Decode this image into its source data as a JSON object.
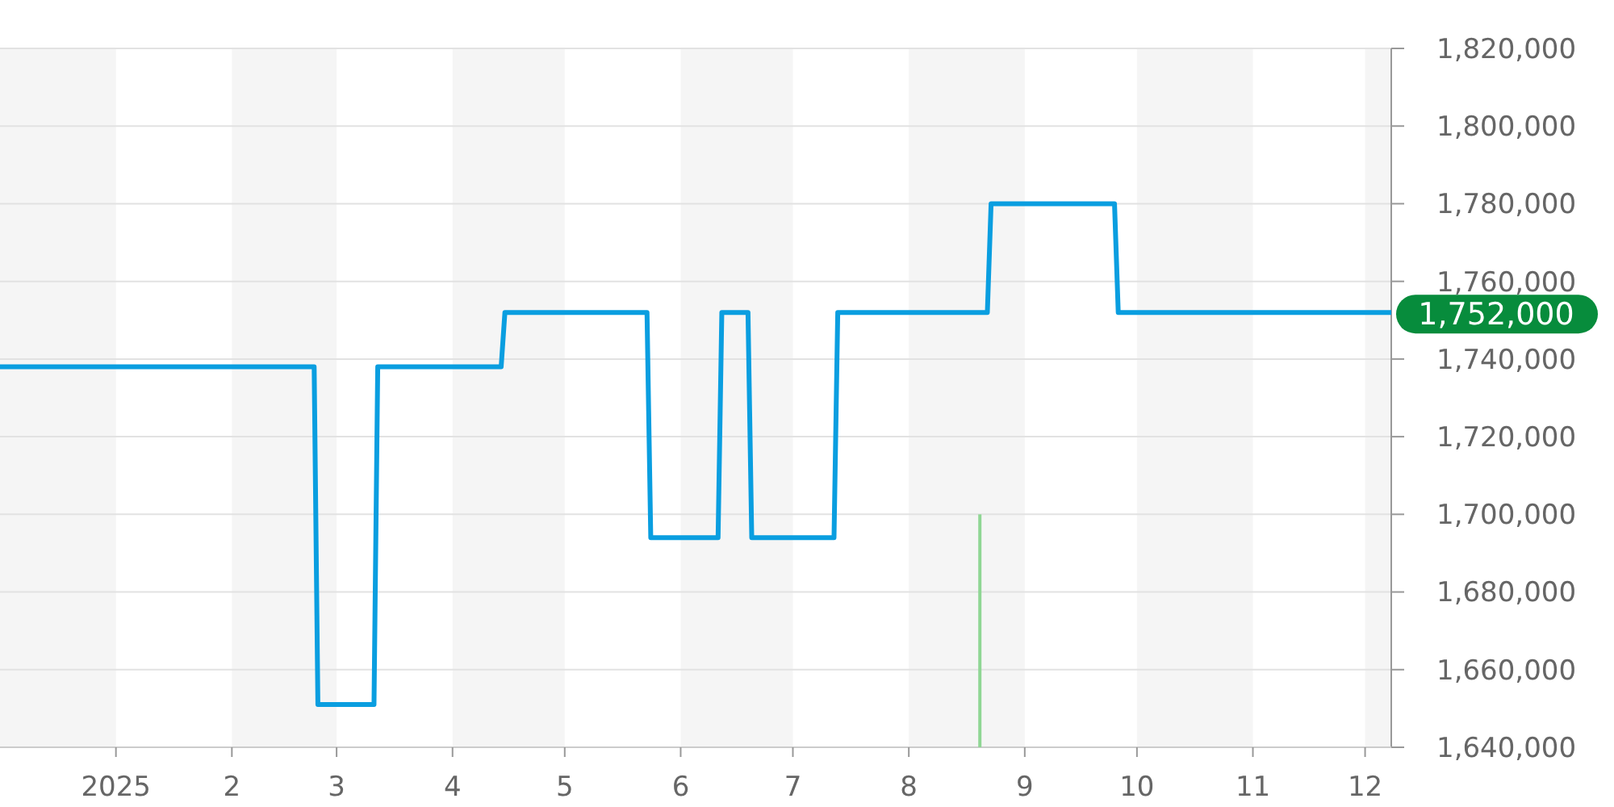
{
  "chart_data": {
    "type": "line",
    "x": [
      "2024-12-01",
      "2025-02-23",
      "2025-02-24",
      "2025-03-11",
      "2025-03-12",
      "2025-04-14",
      "2025-04-15",
      "2025-05-23",
      "2025-05-24",
      "2025-06-11",
      "2025-06-12",
      "2025-06-19",
      "2025-06-20",
      "2025-07-12",
      "2025-07-13",
      "2025-08-22",
      "2025-08-23",
      "2025-09-25",
      "2025-09-26",
      "2025-12-08"
    ],
    "series": [
      {
        "color": "#0a9ee0",
        "values": [
          1738000,
          1738000,
          1651000,
          1651000,
          1738000,
          1738000,
          1752000,
          1752000,
          1694000,
          1694000,
          1752000,
          1752000,
          1694000,
          1694000,
          1752000,
          1752000,
          1780000,
          1780000,
          1752000,
          1752000
        ]
      },
      {
        "type": "bar",
        "color": "#8fd694",
        "x": [
          "2025-08-20"
        ],
        "base": [
          1640000
        ],
        "values": [
          60000
        ]
      }
    ],
    "xlim": [
      "2024-12-01",
      "2025-12-08"
    ],
    "xticks": [
      {
        "value": "2025-01-01",
        "label": "2025"
      },
      {
        "value": "2025-02-01",
        "label": "2"
      },
      {
        "value": "2025-03-01",
        "label": "3"
      },
      {
        "value": "2025-04-01",
        "label": "4"
      },
      {
        "value": "2025-05-01",
        "label": "5"
      },
      {
        "value": "2025-06-01",
        "label": "6"
      },
      {
        "value": "2025-07-01",
        "label": "7"
      },
      {
        "value": "2025-08-01",
        "label": "8"
      },
      {
        "value": "2025-09-01",
        "label": "9"
      },
      {
        "value": "2025-10-01",
        "label": "10"
      },
      {
        "value": "2025-11-01",
        "label": "11"
      },
      {
        "value": "2025-12-01",
        "label": "12"
      }
    ],
    "ylim": [
      1640000,
      1820000
    ],
    "yticks": [
      {
        "value": 1640000,
        "label": "1,640,000"
      },
      {
        "value": 1660000,
        "label": "1,660,000"
      },
      {
        "value": 1680000,
        "label": "1,680,000"
      },
      {
        "value": 1700000,
        "label": "1,700,000"
      },
      {
        "value": 1720000,
        "label": "1,720,000"
      },
      {
        "value": 1740000,
        "label": "1,740,000"
      },
      {
        "value": 1760000,
        "label": "1,760,000"
      },
      {
        "value": 1780000,
        "label": "1,780,000"
      },
      {
        "value": 1800000,
        "label": "1,800,000"
      },
      {
        "value": 1820000,
        "label": "1,820,000"
      }
    ],
    "grid": "y",
    "bands": [
      {
        "axis": "x",
        "from": "2024-12-01",
        "to": "2025-01-01",
        "color": "#f5f5f5"
      },
      {
        "axis": "x",
        "from": "2025-02-01",
        "to": "2025-03-01",
        "color": "#f5f5f5"
      },
      {
        "axis": "x",
        "from": "2025-04-01",
        "to": "2025-05-01",
        "color": "#f5f5f5"
      },
      {
        "axis": "x",
        "from": "2025-06-01",
        "to": "2025-07-01",
        "color": "#f5f5f5"
      },
      {
        "axis": "x",
        "from": "2025-08-01",
        "to": "2025-09-01",
        "color": "#f5f5f5"
      },
      {
        "axis": "x",
        "from": "2025-10-01",
        "to": "2025-11-01",
        "color": "#f5f5f5"
      },
      {
        "axis": "x",
        "from": "2025-12-01",
        "to": "2025-12-08",
        "color": "#f5f5f5"
      }
    ],
    "annotations": [
      {
        "text": "1,752,000",
        "x": "2025-12-08",
        "y": 1752000
      }
    ],
    "line_style": "solid",
    "marker": "none"
  }
}
